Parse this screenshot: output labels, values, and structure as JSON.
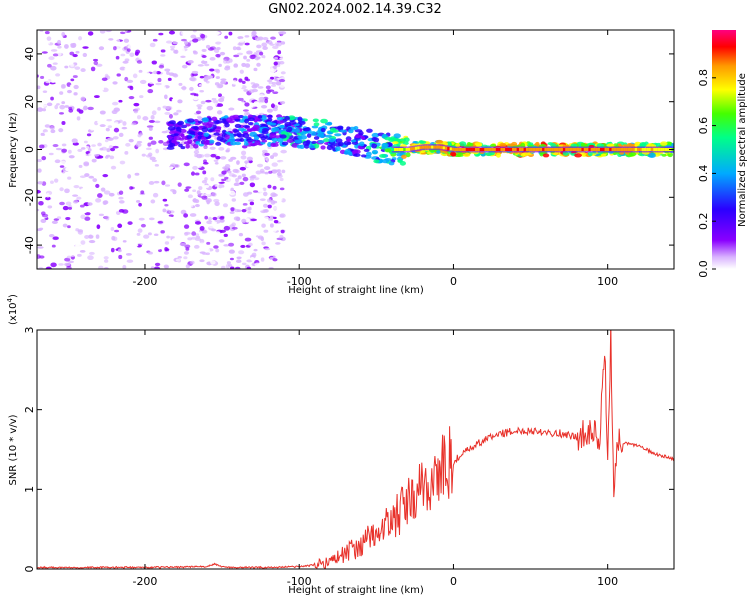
{
  "title": "GN02.2024.002.14.39.C32",
  "chart_data": [
    {
      "type": "heatmap",
      "title": "GN02.2024.002.14.39.C32",
      "xlabel": "Height of straight line (km)",
      "ylabel": "Frequency (Hz)",
      "xlim": [
        -270,
        143
      ],
      "ylim": [
        -50,
        50
      ],
      "xticks": [
        -200,
        -100,
        0,
        100
      ],
      "yticks": [
        -40,
        -20,
        0,
        20,
        40
      ],
      "colorbar": {
        "label": "Normalized spectral amplitude",
        "range": [
          0,
          1
        ],
        "ticks": [
          "0.0",
          "0.2",
          "0.4",
          "0.6",
          "0.8"
        ],
        "colors": [
          "#ffffff",
          "#d9b3ff",
          "#8a00ff",
          "#2a00ff",
          "#00aaff",
          "#00ff88",
          "#44ff00",
          "#ffff00",
          "#ff9900",
          "#ff0000",
          "#ff0080"
        ]
      },
      "ridge": {
        "x": [
          -180,
          -150,
          -120,
          -100,
          -80,
          -60,
          -50,
          -40,
          -30,
          -20,
          -10,
          0,
          50,
          100,
          143
        ],
        "frequency": [
          6,
          8,
          8,
          7,
          6,
          3,
          1,
          0,
          0,
          1,
          1,
          0,
          0,
          0,
          0
        ],
        "peak_amplitude": [
          0.4,
          0.45,
          0.5,
          0.55,
          0.55,
          0.5,
          0.6,
          0.7,
          0.85,
          0.9,
          0.9,
          0.95,
          0.95,
          0.95,
          0.75
        ]
      }
    },
    {
      "type": "line",
      "xlabel": "Height of straight line (km)",
      "ylabel": "SNR (10 * v/v)",
      "yscale_label": "(x10",
      "yscale_exp": "4",
      "yscale_close": ")",
      "xlim": [
        -270,
        143
      ],
      "ylim": [
        0,
        3
      ],
      "xticks": [
        -200,
        -100,
        0,
        100
      ],
      "yticks": [
        0,
        1,
        2,
        3
      ],
      "color": "#e8312a",
      "series": [
        {
          "x": [
            -270,
            -200,
            -160,
            -155,
            -150,
            -145,
            -120,
            -100,
            -90,
            -80,
            -70,
            -60,
            -50,
            -40,
            -30,
            -20,
            -10,
            0,
            10,
            20,
            30,
            40,
            50,
            60,
            70,
            80,
            85,
            90,
            95,
            98,
            100,
            102,
            104,
            106,
            110,
            120,
            130,
            143
          ],
          "y": [
            0.02,
            0.02,
            0.03,
            0.06,
            0.03,
            0.02,
            0.02,
            0.03,
            0.05,
            0.1,
            0.2,
            0.3,
            0.45,
            0.6,
            0.8,
            1.0,
            1.2,
            1.35,
            1.5,
            1.62,
            1.7,
            1.73,
            1.74,
            1.72,
            1.7,
            1.65,
            1.7,
            1.75,
            1.6,
            2.85,
            1.2,
            3.0,
            0.8,
            1.6,
            1.58,
            1.55,
            1.45,
            1.38
          ]
        }
      ]
    }
  ]
}
